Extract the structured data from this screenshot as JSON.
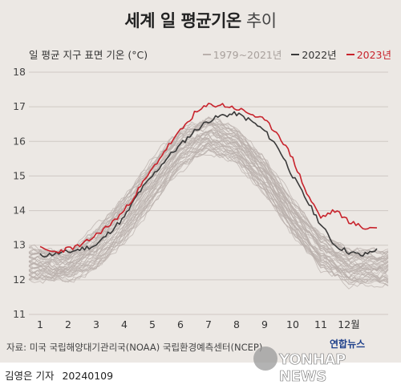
{
  "title": {
    "main": "세계 일 평균기온",
    "sub": "추이"
  },
  "source": "자료: 미국 국립해양대기관리국(NOAA) 국립환경예측센터(NCEP)",
  "logo": {
    "ko": "연합뉴스",
    "en": "YONHAP NEWS"
  },
  "byline": {
    "author": "김영은 기자",
    "date": "20240109"
  },
  "colors": {
    "background": "#ece8e4",
    "historical": "#b9b0ac",
    "y2022": "#3a3a3a",
    "y2023": "#c8232c",
    "grid": "#cfc9c4"
  },
  "chart_data": {
    "type": "line",
    "title": "세계 일 평균기온 추이",
    "ylabel": "일 평균 지구 표면 기온 (°C)",
    "xlabel": "",
    "ylim": [
      11,
      18
    ],
    "yticks": [
      11,
      12,
      13,
      14,
      15,
      16,
      17,
      18
    ],
    "categories": [
      "1",
      "2",
      "3",
      "4",
      "5",
      "6",
      "7",
      "8",
      "9",
      "10",
      "11",
      "12월"
    ],
    "grid": true,
    "legend_position": "top-right",
    "series": [
      {
        "name": "1979~2021년",
        "kind": "band",
        "color": "#b9b0ac",
        "month_low": [
          11.9,
          11.9,
          12.2,
          12.9,
          14.0,
          15.1,
          15.6,
          15.3,
          14.4,
          13.2,
          12.2,
          11.8
        ],
        "month_high": [
          13.0,
          12.9,
          13.6,
          14.6,
          15.6,
          16.5,
          16.8,
          16.5,
          15.6,
          14.4,
          13.4,
          13.0
        ]
      },
      {
        "name": "2022년",
        "color": "#3a3a3a",
        "x": [
          0.5,
          1.0,
          1.5,
          2.0,
          2.5,
          3.0,
          3.5,
          4.0,
          4.5,
          5.0,
          5.5,
          6.0,
          6.5,
          7.0,
          7.5,
          8.0,
          8.5,
          9.0,
          9.5,
          10.0,
          10.5,
          11.0,
          11.5,
          12.0,
          12.5
        ],
        "values": [
          12.7,
          12.75,
          12.8,
          12.9,
          13.0,
          13.4,
          13.8,
          14.5,
          15.0,
          15.5,
          15.9,
          16.3,
          16.6,
          16.75,
          16.8,
          16.6,
          16.3,
          15.8,
          15.0,
          14.3,
          13.6,
          13.0,
          12.8,
          12.7,
          12.9
        ]
      },
      {
        "name": "2023년",
        "color": "#c8232c",
        "x": [
          0.5,
          1.0,
          1.5,
          2.0,
          2.5,
          3.0,
          3.5,
          4.0,
          4.5,
          5.0,
          5.5,
          6.0,
          6.5,
          7.0,
          7.5,
          8.0,
          8.5,
          9.0,
          9.5,
          10.0,
          10.5,
          11.0,
          11.5,
          12.0,
          12.5
        ],
        "values": [
          12.9,
          12.8,
          12.9,
          13.0,
          13.3,
          13.6,
          14.0,
          14.6,
          15.2,
          15.8,
          16.3,
          16.8,
          17.05,
          17.05,
          16.95,
          16.8,
          16.6,
          16.2,
          15.5,
          14.5,
          13.8,
          14.0,
          13.7,
          13.5,
          13.5
        ]
      }
    ]
  }
}
